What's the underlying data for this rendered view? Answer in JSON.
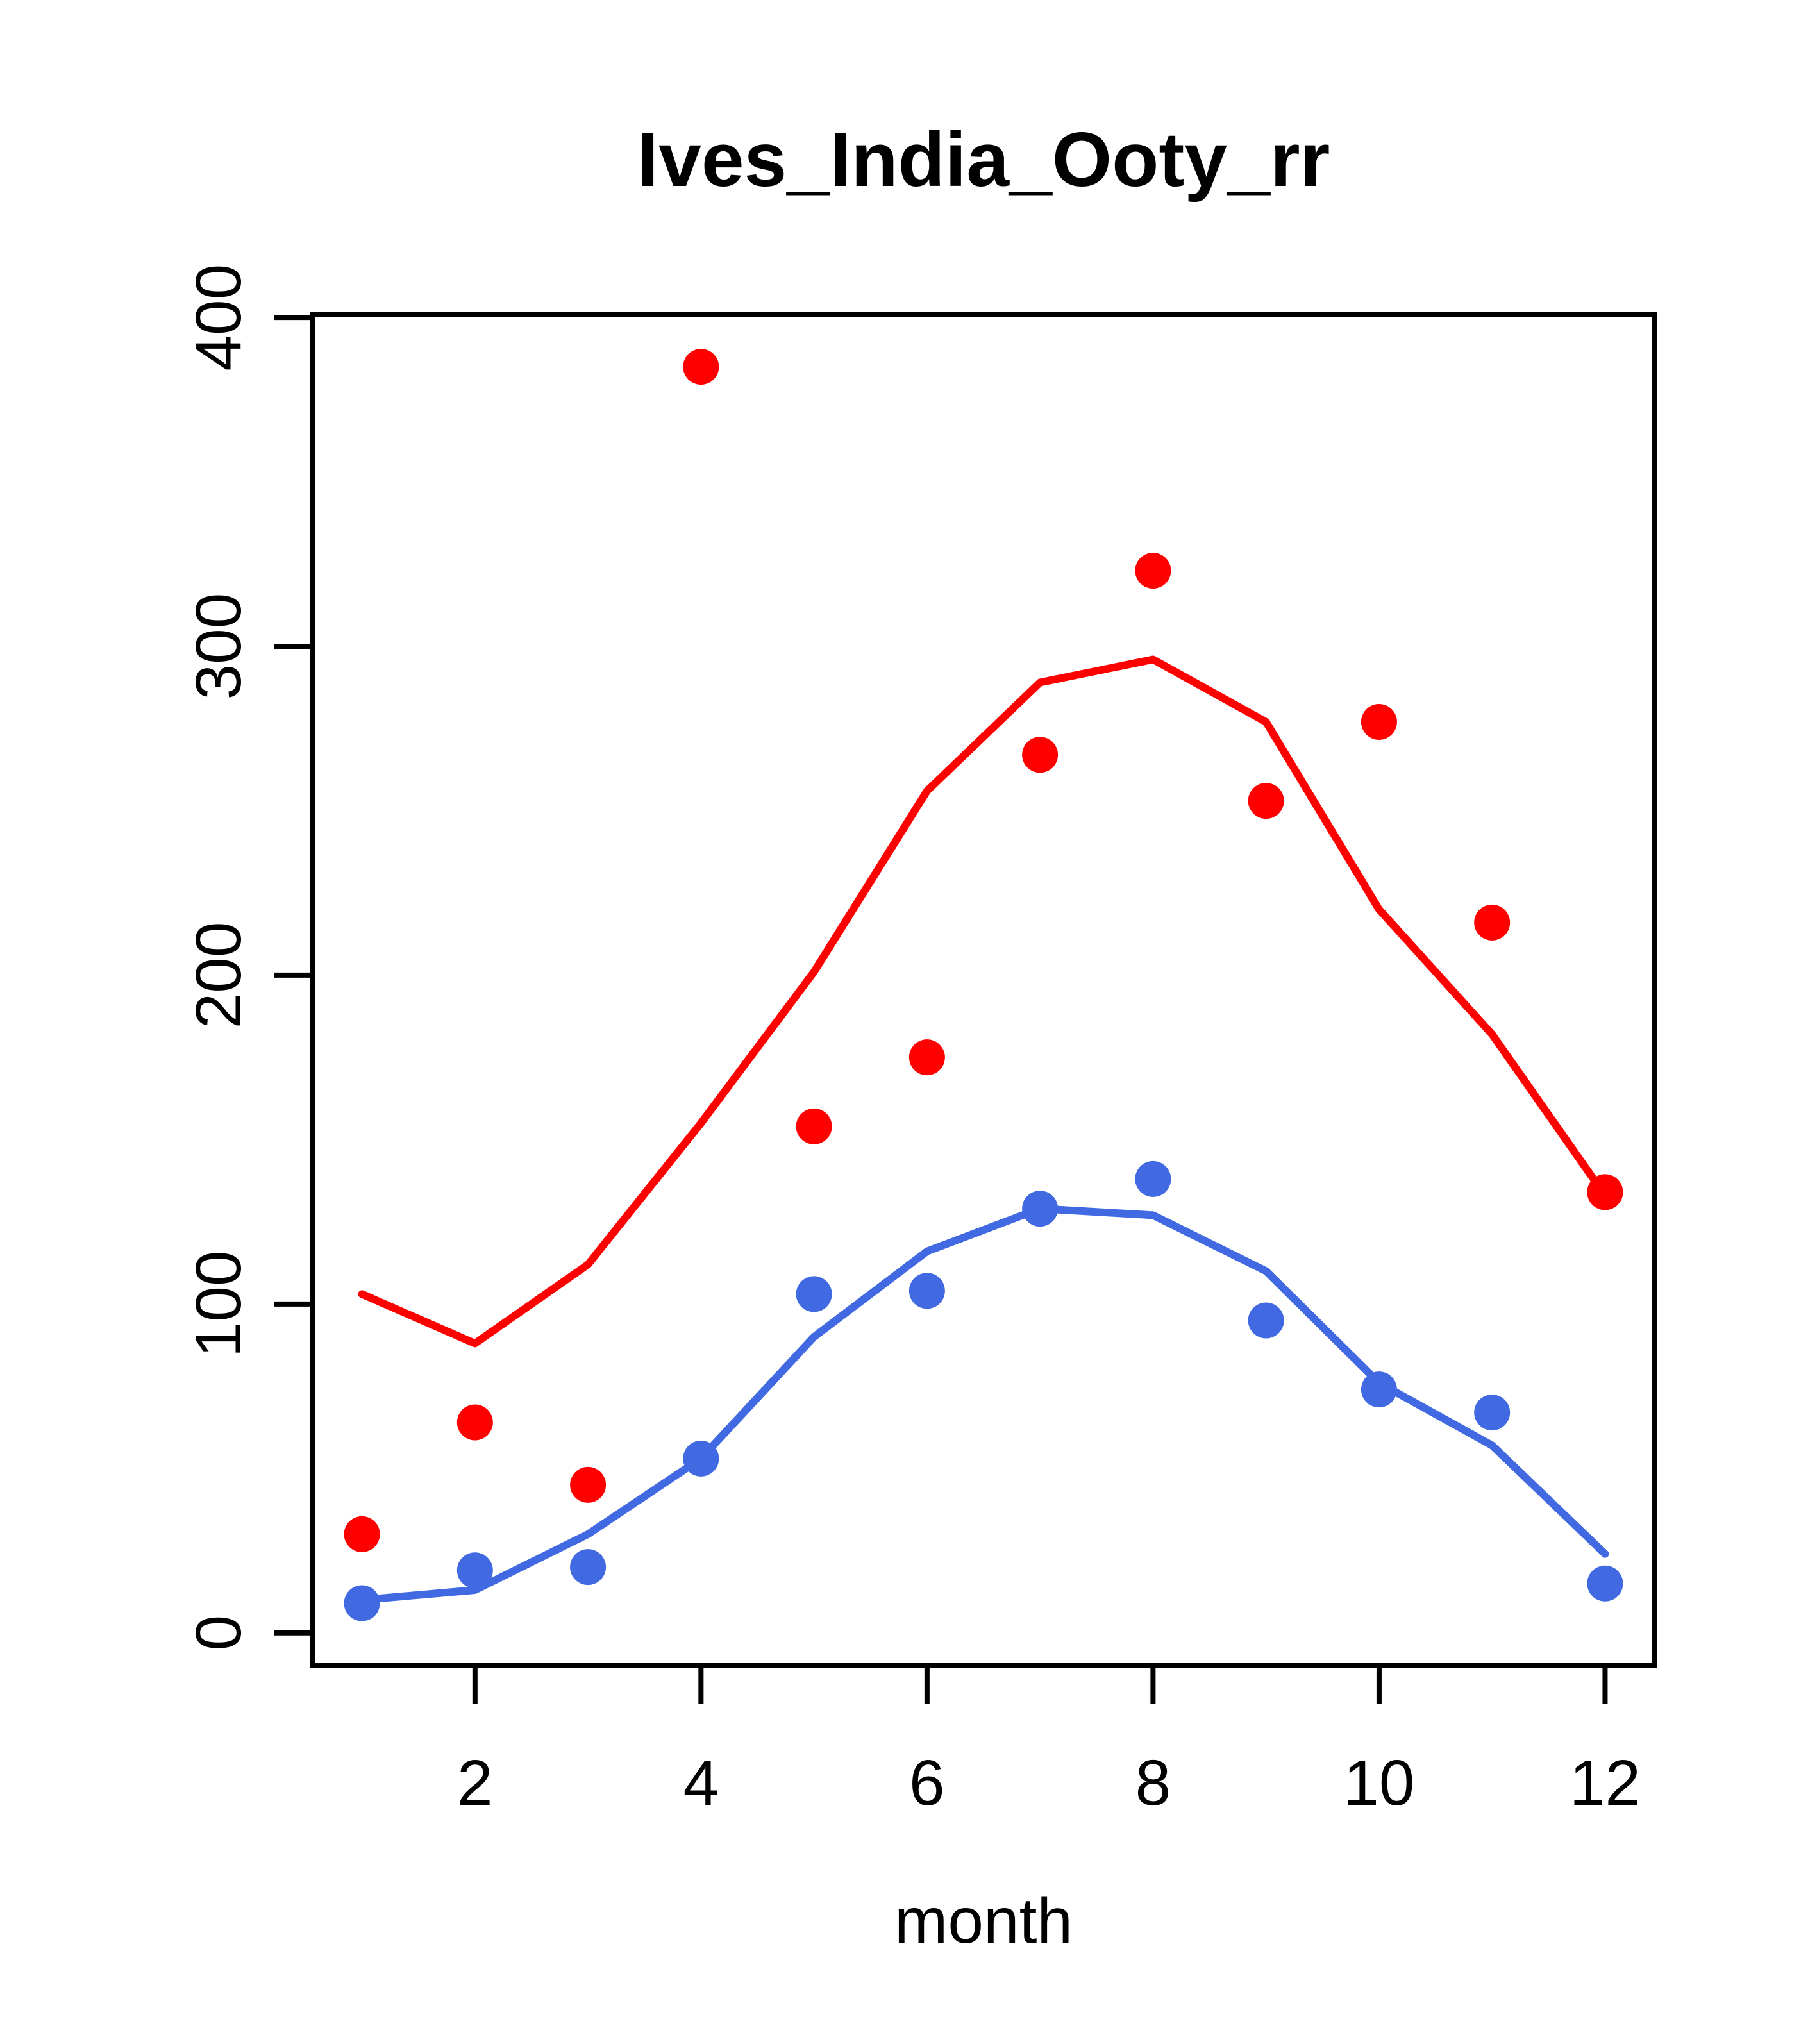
{
  "chart_data": {
    "type": "line",
    "title": "Ives_India_Ooty_rr",
    "xlabel": "month",
    "ylabel": "",
    "x": [
      1,
      2,
      3,
      4,
      5,
      6,
      7,
      8,
      9,
      10,
      11,
      12
    ],
    "x_ticks": [
      2,
      4,
      6,
      8,
      10,
      12
    ],
    "y_ticks": [
      0,
      100,
      200,
      300,
      400
    ],
    "xlim": [
      0.56,
      12.44
    ],
    "ylim": [
      -10,
      401
    ],
    "grid": false,
    "legend_position": "none",
    "series": [
      {
        "name": "red-line",
        "type": "line",
        "color": "#FF0000",
        "values": [
          103,
          88,
          112,
          155,
          201,
          256,
          289,
          296,
          277,
          220,
          182,
          133
        ]
      },
      {
        "name": "blue-line",
        "type": "line",
        "color": "#4169E1",
        "values": [
          10,
          13,
          30,
          53,
          90,
          116,
          129,
          127,
          110,
          76,
          57,
          24
        ]
      },
      {
        "name": "red-points",
        "type": "scatter",
        "color": "#FF0000",
        "values": [
          30,
          64,
          45,
          385,
          154,
          175,
          267,
          323,
          253,
          277,
          216,
          134
        ]
      },
      {
        "name": "blue-points",
        "type": "scatter",
        "color": "#4169E1",
        "values": [
          9,
          19,
          20,
          53,
          103,
          104,
          129,
          138,
          95,
          74,
          67,
          15
        ]
      }
    ]
  },
  "colors": {
    "red": "#FF0000",
    "blue": "#4169E1",
    "axis": "#000000",
    "background": "#FFFFFF"
  }
}
